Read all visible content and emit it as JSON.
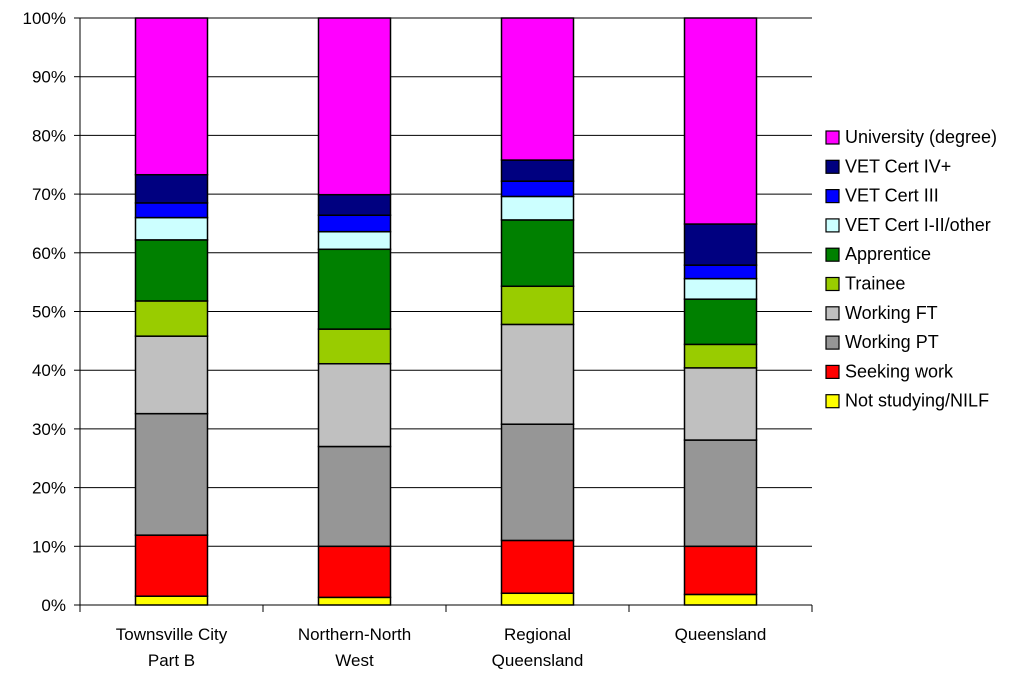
{
  "chart_data": {
    "type": "bar",
    "stacked": true,
    "percent": true,
    "title": "",
    "xlabel": "",
    "ylabel": "",
    "ylim": [
      0,
      100
    ],
    "yticks": [
      "0%",
      "10%",
      "20%",
      "30%",
      "40%",
      "50%",
      "60%",
      "70%",
      "80%",
      "90%",
      "100%"
    ],
    "categories": [
      [
        "Townsville City",
        "Part B"
      ],
      [
        "Northern-North",
        "West"
      ],
      [
        "Regional",
        "Queensland"
      ],
      [
        "Queensland"
      ]
    ],
    "series": [
      {
        "name": "Not studying/NILF",
        "color": "#FFFF00",
        "values": [
          1.5,
          1.3,
          2.0,
          1.8
        ]
      },
      {
        "name": "Seeking work",
        "color": "#FF0000",
        "values": [
          10.4,
          8.7,
          9.0,
          8.2
        ]
      },
      {
        "name": "Working PT",
        "color": "#969696",
        "values": [
          20.7,
          17.0,
          19.8,
          18.1
        ]
      },
      {
        "name": "Working FT",
        "color": "#C0C0C0",
        "values": [
          13.2,
          14.1,
          17.0,
          12.3
        ]
      },
      {
        "name": "Trainee",
        "color": "#99CC00",
        "values": [
          6.0,
          5.9,
          6.5,
          4.0
        ]
      },
      {
        "name": "Apprentice",
        "color": "#008000",
        "values": [
          10.4,
          13.6,
          11.3,
          7.7
        ]
      },
      {
        "name": "VET Cert I-II/other",
        "color": "#CCFFFF",
        "values": [
          3.8,
          3.0,
          4.0,
          3.5
        ]
      },
      {
        "name": "VET Cert III",
        "color": "#0000FF",
        "values": [
          2.5,
          2.8,
          2.6,
          2.3
        ]
      },
      {
        "name": "VET Cert IV+",
        "color": "#000080",
        "values": [
          4.8,
          3.5,
          3.6,
          7.0
        ]
      },
      {
        "name": "University (degree)",
        "color": "#FF00FF",
        "values": [
          26.7,
          30.1,
          24.2,
          35.1
        ]
      }
    ],
    "legend_position": "right",
    "grid": true
  }
}
